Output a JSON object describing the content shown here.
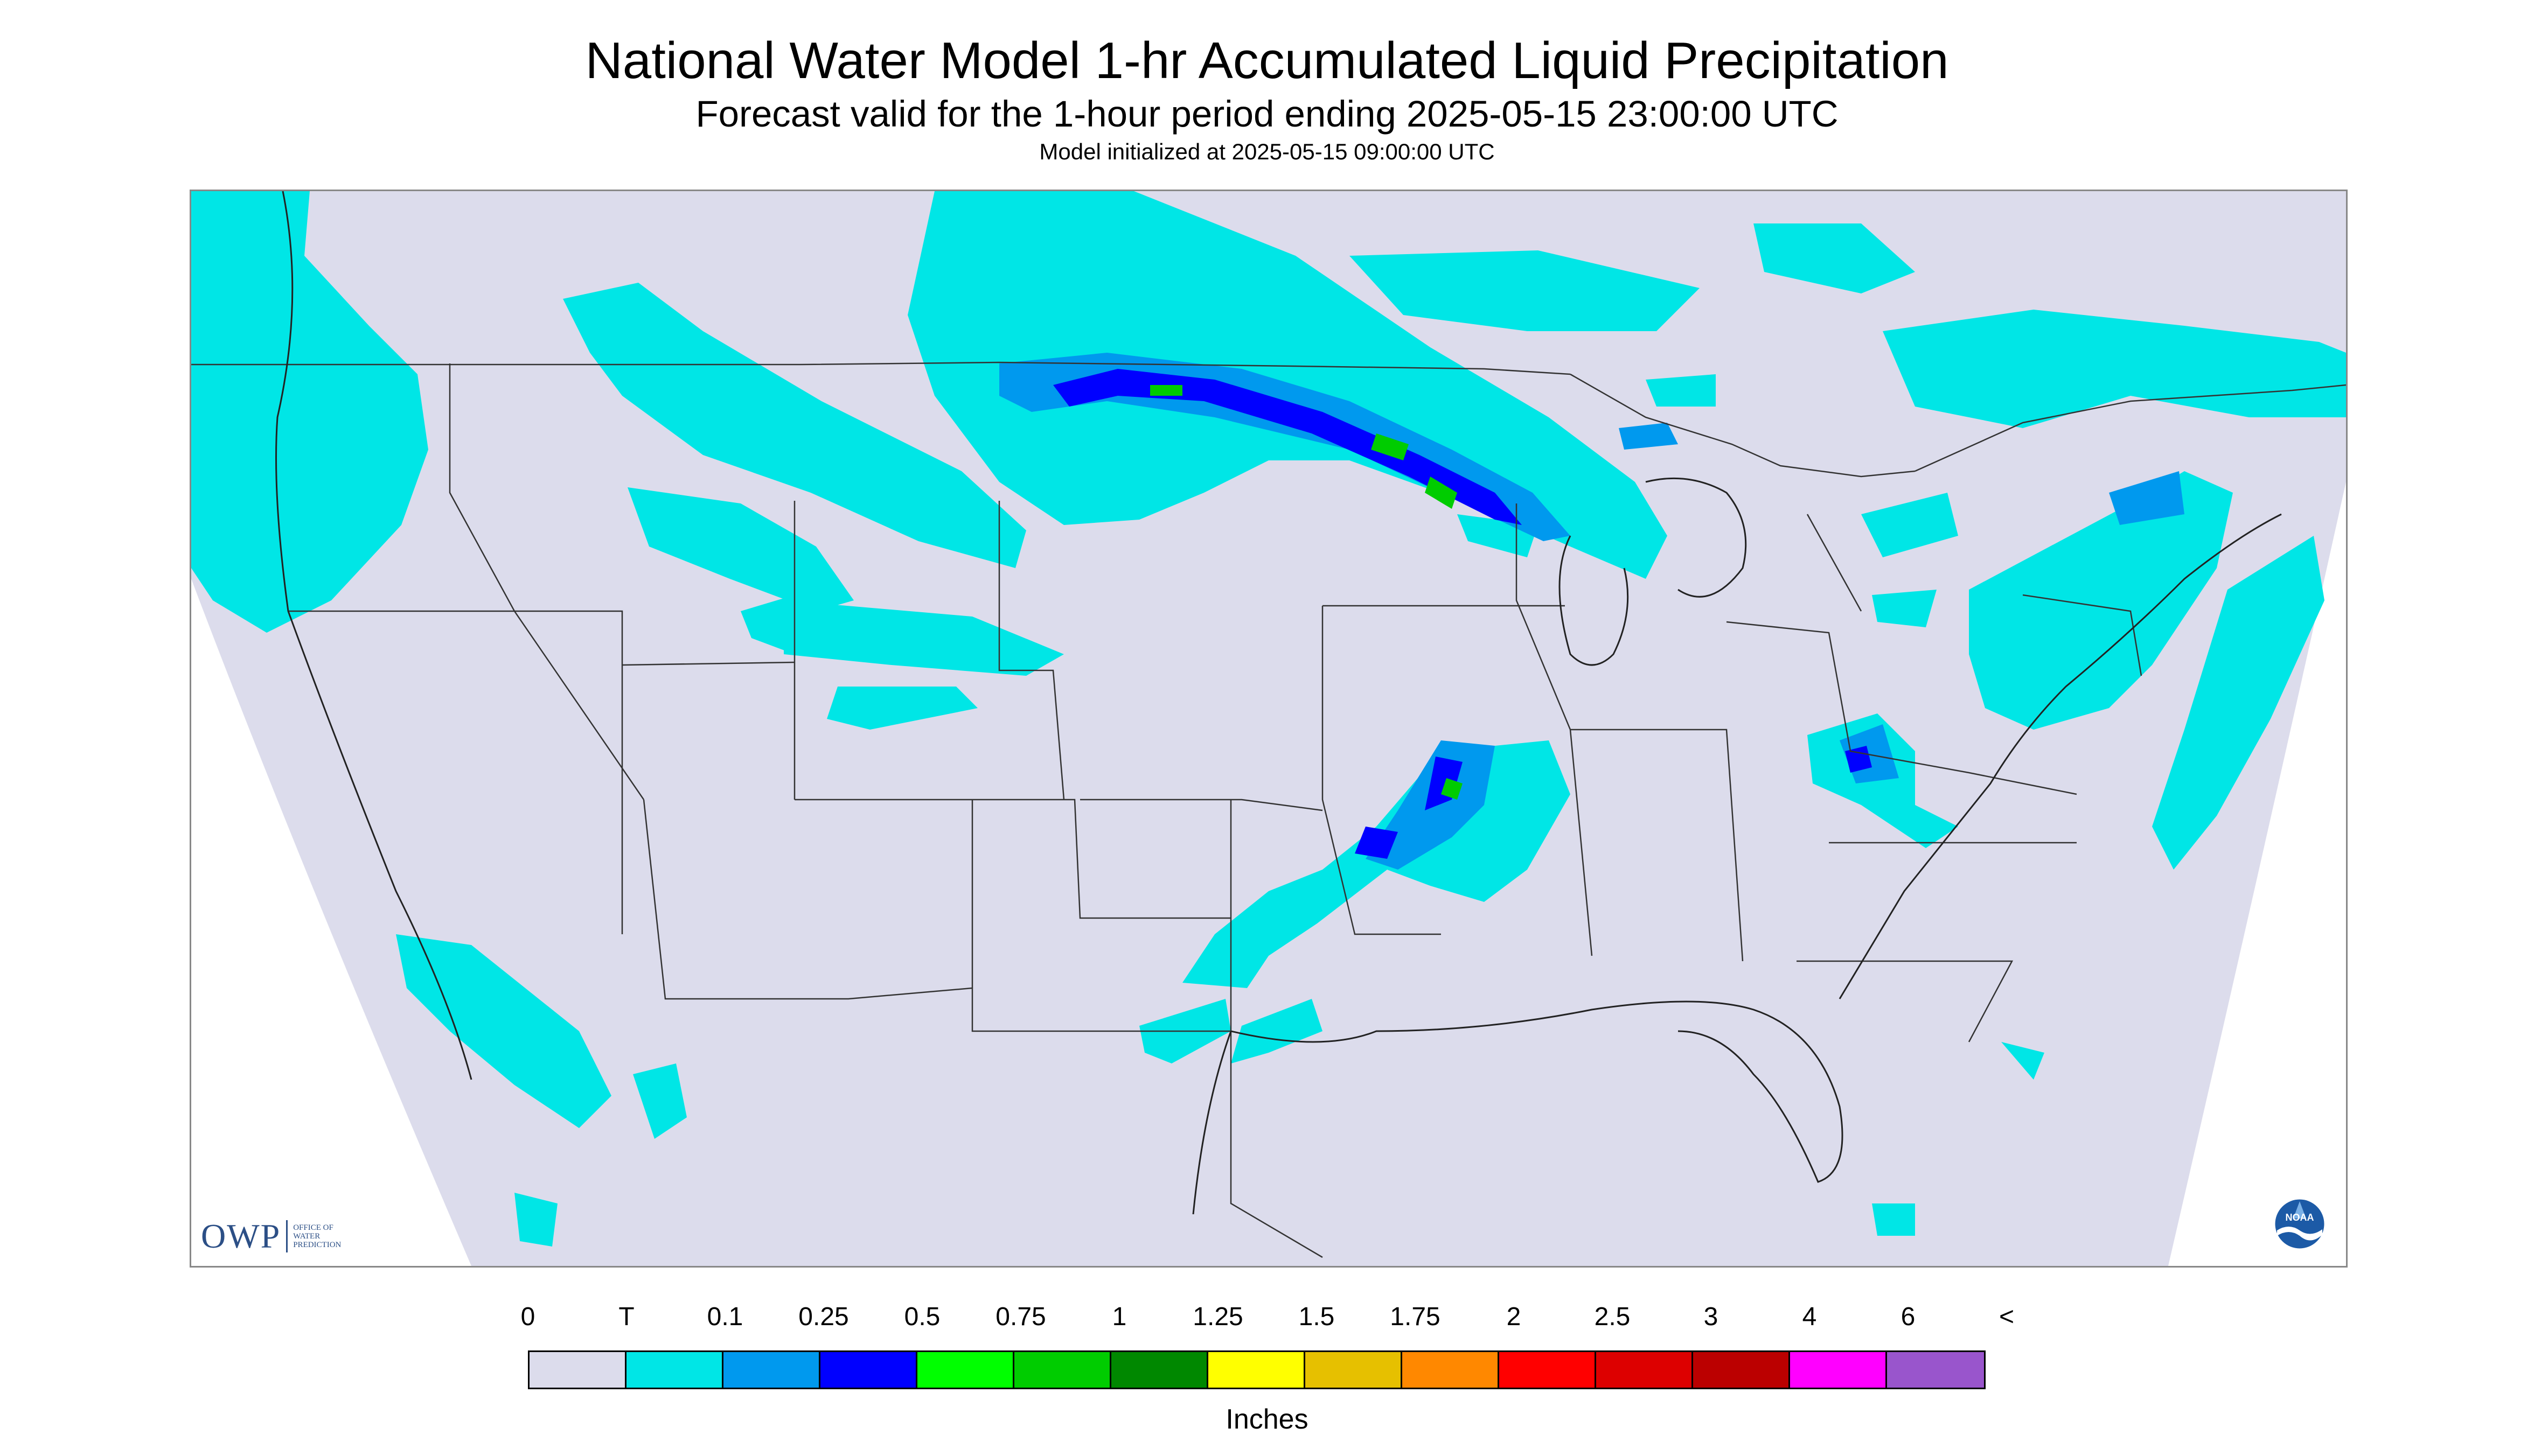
{
  "title": "National Water Model 1-hr Accumulated Liquid Precipitation",
  "subtitle": "Forecast valid for the 1-hour period ending 2025-05-15 23:00:00 UTC",
  "init_text": "Model initialized at 2025-05-15 09:00:00 UTC",
  "logos": {
    "owp_big": "OWP",
    "owp_small": [
      "OFFICE OF",
      "WATER",
      "PREDICTION"
    ],
    "noaa": "NOAA"
  },
  "legend": {
    "unit": "Inches",
    "labels": [
      "0",
      "T",
      "0.1",
      "0.25",
      "0.5",
      "0.75",
      "1",
      "1.25",
      "1.5",
      "1.75",
      "2",
      "2.5",
      "3",
      "4",
      "6",
      "<"
    ],
    "colors": [
      "#dcdcec",
      "#00e6e6",
      "#0099ee",
      "#0000ff",
      "#00ff00",
      "#00cc00",
      "#008800",
      "#ffff00",
      "#e6c000",
      "#ff8800",
      "#ff0000",
      "#dd0000",
      "#bb0000",
      "#ff00ff",
      "#9955cc"
    ]
  },
  "colors": {
    "no_data_bg": "#dcdcec",
    "trace": "#00e6e6",
    "light": "#0099ee",
    "moderate": "#0000ff",
    "heavy": "#00cc00",
    "border_lines": "#333333"
  }
}
